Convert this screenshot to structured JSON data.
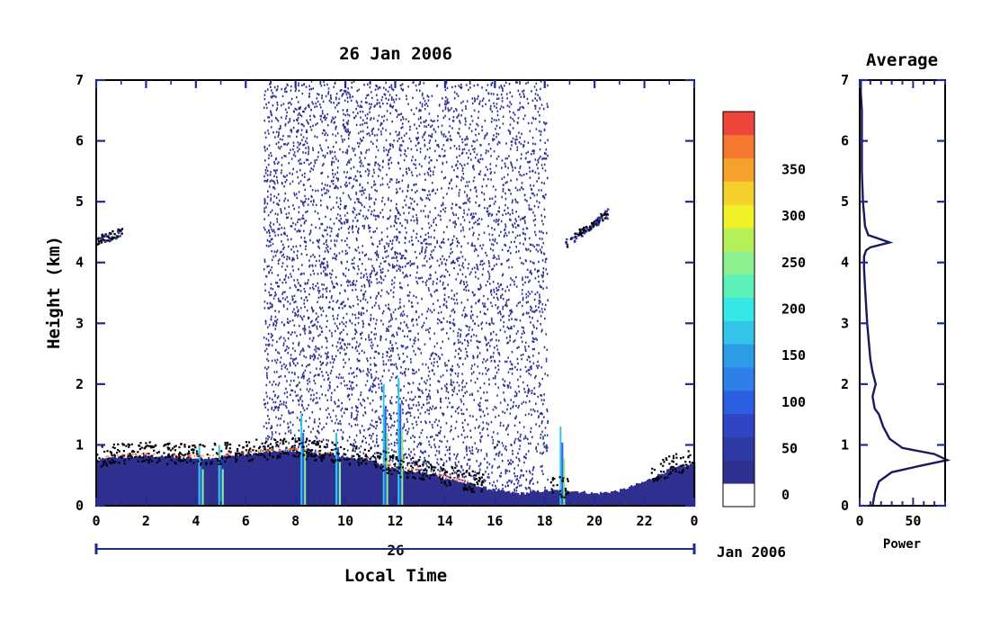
{
  "chart_data": [
    {
      "type": "heatmap",
      "title": "26 Jan 2006",
      "xlabel": "Local Time",
      "ylabel": "Height (km)",
      "xlim": [
        0,
        24
      ],
      "ylim": [
        0,
        7
      ],
      "x_tick_labels": [
        "0",
        "2",
        "4",
        "6",
        "8",
        "10",
        "12",
        "14",
        "16",
        "18",
        "20",
        "22",
        "0"
      ],
      "y_ticks": [
        0,
        1,
        2,
        3,
        4,
        5,
        6,
        7
      ],
      "day_label": "26",
      "month_label": "Jan 2006",
      "colorbar": {
        "min": 0,
        "max": 375,
        "levels": [
          0,
          25,
          50,
          75,
          100,
          125,
          150,
          175,
          200,
          225,
          250,
          275,
          300,
          325,
          350,
          375
        ],
        "tick_values": [
          0,
          50,
          100,
          150,
          200,
          250,
          300,
          350
        ],
        "colors": [
          "#ffffff",
          "#2e2f8f",
          "#2f3aa6",
          "#2f45c4",
          "#2b5ee0",
          "#2e7fe8",
          "#2d9be6",
          "#33c4ea",
          "#33e8e6",
          "#5ef0b9",
          "#8cf08f",
          "#b5f058",
          "#f1f12a",
          "#f5cf2b",
          "#f5a22c",
          "#f4782e",
          "#f0453a"
        ]
      },
      "boundary_layer_height_km": [
        [
          0,
          0.75
        ],
        [
          0.5,
          0.78
        ],
        [
          1,
          0.8
        ],
        [
          2,
          0.82
        ],
        [
          3,
          0.8
        ],
        [
          4,
          0.78
        ],
        [
          5,
          0.8
        ],
        [
          6,
          0.85
        ],
        [
          7,
          0.88
        ],
        [
          8,
          0.9
        ],
        [
          9,
          0.85
        ],
        [
          10,
          0.8
        ],
        [
          11,
          0.75
        ],
        [
          12,
          0.6
        ],
        [
          13,
          0.55
        ],
        [
          14,
          0.45
        ],
        [
          15,
          0.35
        ],
        [
          16,
          0.25
        ],
        [
          17,
          0.2
        ],
        [
          18,
          0.25
        ],
        [
          19,
          0.25
        ],
        [
          20,
          0.2
        ],
        [
          21,
          0.25
        ],
        [
          22,
          0.4
        ],
        [
          23,
          0.6
        ],
        [
          24,
          0.7
        ]
      ],
      "cloud_layers_km": [
        [
          0,
          1,
          4.3,
          4.45
        ],
        [
          18.8,
          20.5,
          4.25,
          4.8
        ]
      ]
    },
    {
      "type": "line",
      "title": "Average",
      "xlabel": "Power",
      "xlim": [
        0,
        80
      ],
      "ylim": [
        0,
        7
      ],
      "x_tick_labels": [
        "0",
        "50"
      ],
      "y_ticks": [
        0,
        1,
        2,
        3,
        4,
        5,
        6,
        7
      ],
      "series": [
        {
          "x": [
            12,
            14,
            18,
            30,
            55,
            82,
            70,
            40,
            28,
            22,
            18,
            14,
            12,
            15,
            12,
            10,
            9,
            8,
            7,
            6,
            5,
            4,
            4,
            6,
            10,
            28,
            8,
            5,
            4,
            3,
            2,
            2,
            2,
            1,
            1
          ],
          "y": [
            0,
            0.2,
            0.4,
            0.55,
            0.65,
            0.75,
            0.85,
            0.95,
            1.1,
            1.3,
            1.5,
            1.6,
            1.8,
            2.0,
            2.2,
            2.4,
            2.6,
            2.8,
            3.0,
            3.3,
            3.6,
            3.9,
            4.1,
            4.2,
            4.25,
            4.33,
            4.45,
            4.6,
            4.8,
            5.0,
            5.5,
            6.0,
            6.5,
            6.8,
            7.0
          ]
        }
      ]
    }
  ]
}
